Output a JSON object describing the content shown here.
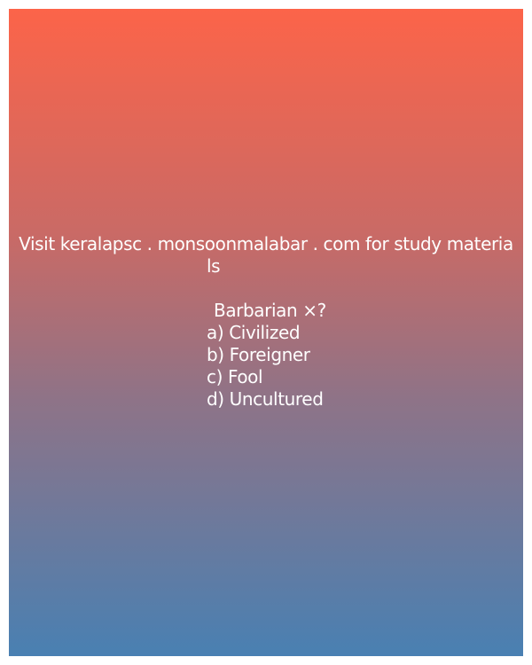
{
  "promo": {
    "line1": "Visit keralapsc . monsoonmalabar . com for study materia",
    "line2": "ls"
  },
  "quiz": {
    "question": "Barbarian ×?",
    "options": [
      "a) Civilized",
      "b) Foreigner",
      "c) Fool",
      "d) Uncultured"
    ]
  },
  "colors": {
    "gradient_top": "#fc6449",
    "gradient_bottom": "#4980b2",
    "text": "#ffffff"
  }
}
